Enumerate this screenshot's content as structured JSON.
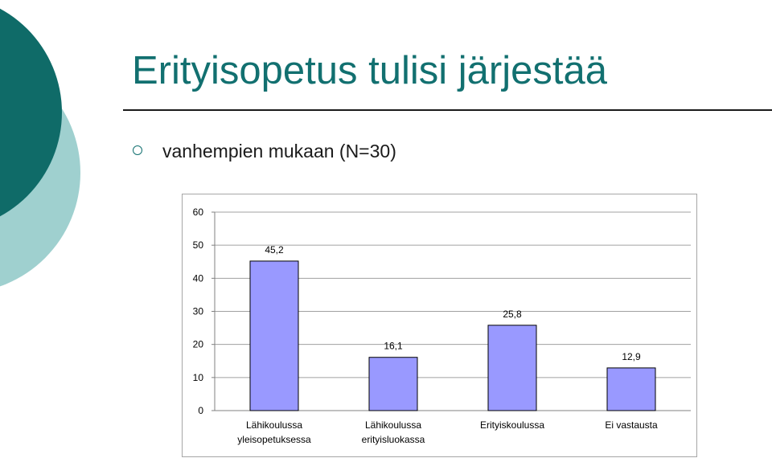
{
  "slide": {
    "title": "Erityisopetus tulisi järjestää",
    "bullet": "vanhempien mukaan (N=30)",
    "colors": {
      "title": "#127070",
      "deco_dark": "#0f6b68",
      "deco_light": "#9fd0cf",
      "bar_fill": "#9999ff",
      "bar_stroke": "#000000"
    }
  },
  "chart_data": {
    "type": "bar",
    "categories": [
      [
        "Lähikoulussa",
        "yleisopetuksessa"
      ],
      [
        "Lähikoulussa",
        "erityisluokassa"
      ],
      [
        "Erityiskoulussa"
      ],
      [
        "Ei vastausta"
      ]
    ],
    "values": [
      45.2,
      16.1,
      25.8,
      12.9
    ],
    "data_labels": [
      "45,2",
      "16,1",
      "25,8",
      "12,9"
    ],
    "ylim": [
      0,
      60
    ],
    "yticks": [
      0,
      10,
      20,
      30,
      40,
      50,
      60
    ],
    "grid": true,
    "legend": "none"
  }
}
